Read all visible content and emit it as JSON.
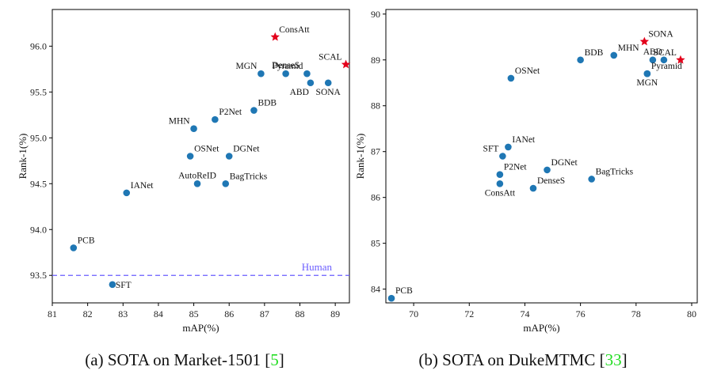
{
  "chart_data": [
    {
      "type": "scatter",
      "caption": "(a) SOTA on Market-1501 [",
      "caption_ref": "5",
      "caption_end": "]",
      "xlabel": "mAP(%)",
      "ylabel": "Rank-1(%)",
      "xlim": [
        81,
        89.4
      ],
      "ylim": [
        93.2,
        96.4
      ],
      "xticks": [
        81,
        82,
        83,
        84,
        85,
        86,
        87,
        88,
        89
      ],
      "yticks": [
        93.5,
        94.0,
        94.5,
        95.0,
        95.5,
        96.0
      ],
      "ytick_labels": [
        "93.5",
        "94.0",
        "94.5",
        "95.0",
        "95.5",
        "96.0"
      ],
      "reference_line": {
        "label": "Human",
        "y": 93.5,
        "color": "#6a5cff"
      },
      "points": [
        {
          "name": "ConsAtt",
          "x": 87.3,
          "y": 96.1,
          "highlight": true,
          "label_pos": "ne"
        },
        {
          "name": "SCAL",
          "x": 89.3,
          "y": 95.8,
          "highlight": true,
          "label_pos": "nw"
        },
        {
          "name": "MGN",
          "x": 86.9,
          "y": 95.7,
          "highlight": false,
          "label_pos": "nw"
        },
        {
          "name": "DenseS",
          "x": 87.6,
          "y": 95.7,
          "highlight": false,
          "label_pos": "n"
        },
        {
          "name": "Pyramid",
          "x": 88.2,
          "y": 95.7,
          "highlight": false,
          "label_pos": "nw"
        },
        {
          "name": "ABD",
          "x": 88.3,
          "y": 95.6,
          "highlight": false,
          "label_pos": "sw"
        },
        {
          "name": "SONA",
          "x": 88.8,
          "y": 95.6,
          "highlight": false,
          "label_pos": "s"
        },
        {
          "name": "BDB",
          "x": 86.7,
          "y": 95.3,
          "highlight": false,
          "label_pos": "ne"
        },
        {
          "name": "P2Net",
          "x": 85.6,
          "y": 95.2,
          "highlight": false,
          "label_pos": "ne"
        },
        {
          "name": "MHN",
          "x": 85.0,
          "y": 95.1,
          "highlight": false,
          "label_pos": "nw"
        },
        {
          "name": "OSNet",
          "x": 84.9,
          "y": 94.8,
          "highlight": false,
          "label_pos": "ne"
        },
        {
          "name": "DGNet",
          "x": 86.0,
          "y": 94.8,
          "highlight": false,
          "label_pos": "ne"
        },
        {
          "name": "AutoReID",
          "x": 85.1,
          "y": 94.5,
          "highlight": false,
          "label_pos": "n"
        },
        {
          "name": "BagTricks",
          "x": 85.9,
          "y": 94.5,
          "highlight": false,
          "label_pos": "ne"
        },
        {
          "name": "IANet",
          "x": 83.1,
          "y": 94.4,
          "highlight": false,
          "label_pos": "ne"
        },
        {
          "name": "PCB",
          "x": 81.6,
          "y": 93.8,
          "highlight": false,
          "label_pos": "ne"
        },
        {
          "name": "SFT",
          "x": 82.7,
          "y": 93.4,
          "highlight": false,
          "label_pos": "e"
        }
      ]
    },
    {
      "type": "scatter",
      "caption": "(b) SOTA on DukeMTMC [",
      "caption_ref": "33",
      "caption_end": "]",
      "xlabel": "mAP(%)",
      "ylabel": "Rank-1(%)",
      "xlim": [
        69,
        80.2
      ],
      "ylim": [
        83.7,
        90.1
      ],
      "xticks": [
        70,
        72,
        74,
        76,
        78,
        80
      ],
      "yticks": [
        84,
        85,
        86,
        87,
        88,
        89,
        90
      ],
      "ytick_labels": [
        "84",
        "85",
        "86",
        "87",
        "88",
        "89",
        "90"
      ],
      "points": [
        {
          "name": "SONA",
          "x": 78.3,
          "y": 89.4,
          "highlight": true,
          "label_pos": "ne"
        },
        {
          "name": "SCAL",
          "x": 79.6,
          "y": 89.0,
          "highlight": true,
          "label_pos": "nw"
        },
        {
          "name": "BDB",
          "x": 76.0,
          "y": 89.0,
          "highlight": false,
          "label_pos": "ne"
        },
        {
          "name": "MHN",
          "x": 77.2,
          "y": 89.1,
          "highlight": false,
          "label_pos": "ne"
        },
        {
          "name": "ABD",
          "x": 78.6,
          "y": 89.0,
          "highlight": false,
          "label_pos": "n"
        },
        {
          "name": "Pyramid",
          "x": 79.0,
          "y": 89.0,
          "highlight": false,
          "label_pos": "none"
        },
        {
          "name": "Pyramid",
          "x": 78.4,
          "y": 88.7,
          "highlight": false,
          "label_pos": "ne"
        },
        {
          "name": "MGN",
          "x": 78.4,
          "y": 88.7,
          "highlight": false,
          "label_pos": "s"
        },
        {
          "name": "OSNet",
          "x": 73.5,
          "y": 88.6,
          "highlight": false,
          "label_pos": "ne"
        },
        {
          "name": "IANet",
          "x": 73.4,
          "y": 87.1,
          "highlight": false,
          "label_pos": "ne"
        },
        {
          "name": "SFT",
          "x": 73.2,
          "y": 86.9,
          "highlight": false,
          "label_pos": "nw"
        },
        {
          "name": "DGNet",
          "x": 74.8,
          "y": 86.6,
          "highlight": false,
          "label_pos": "ne"
        },
        {
          "name": "P2Net",
          "x": 73.1,
          "y": 86.5,
          "highlight": false,
          "label_pos": "ne"
        },
        {
          "name": "BagTricks",
          "x": 76.4,
          "y": 86.4,
          "highlight": false,
          "label_pos": "ne"
        },
        {
          "name": "DenseS",
          "x": 74.3,
          "y": 86.2,
          "highlight": false,
          "label_pos": "ne"
        },
        {
          "name": "ConsAtt",
          "x": 73.1,
          "y": 86.3,
          "highlight": false,
          "label_pos": "s"
        },
        {
          "name": "PCB",
          "x": 69.2,
          "y": 83.8,
          "highlight": false,
          "label_pos": "ne"
        }
      ]
    }
  ],
  "colors": {
    "point": "#1f77b4",
    "highlight": "#e3001b",
    "axis": "#000000"
  }
}
